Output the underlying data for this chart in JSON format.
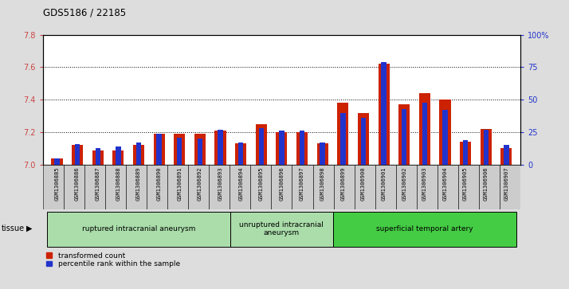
{
  "title": "GDS5186 / 22185",
  "samples": [
    "GSM1306885",
    "GSM1306886",
    "GSM1306887",
    "GSM1306888",
    "GSM1306889",
    "GSM1306890",
    "GSM1306891",
    "GSM1306892",
    "GSM1306893",
    "GSM1306894",
    "GSM1306895",
    "GSM1306896",
    "GSM1306897",
    "GSM1306898",
    "GSM1306899",
    "GSM1306900",
    "GSM1306901",
    "GSM1306902",
    "GSM1306903",
    "GSM1306904",
    "GSM1306905",
    "GSM1306906",
    "GSM1306907"
  ],
  "transformed_count": [
    7.04,
    7.12,
    7.09,
    7.09,
    7.12,
    7.19,
    7.19,
    7.19,
    7.21,
    7.13,
    7.25,
    7.2,
    7.2,
    7.13,
    7.38,
    7.32,
    7.62,
    7.37,
    7.44,
    7.4,
    7.14,
    7.22,
    7.1
  ],
  "percentile_rank": [
    5,
    16,
    13,
    14,
    17,
    24,
    21,
    20,
    27,
    17,
    28,
    26,
    26,
    17,
    40,
    36,
    79,
    43,
    48,
    42,
    19,
    27,
    15
  ],
  "ylim_left": [
    7.0,
    7.8
  ],
  "ylim_right": [
    0,
    100
  ],
  "yticks_left": [
    7.0,
    7.2,
    7.4,
    7.6,
    7.8
  ],
  "yticks_right": [
    0,
    25,
    50,
    75,
    100
  ],
  "bar_color_red": "#cc2200",
  "bar_color_blue": "#2233cc",
  "background_color": "#dddddd",
  "plot_bg_color": "#ffffff",
  "label_bg_color": "#cccccc",
  "legend_label_red": "transformed count",
  "legend_label_blue": "percentile rank within the sample",
  "groups": [
    {
      "label": "ruptured intracranial aneurysm",
      "start": 0,
      "end": 9,
      "color": "#aaddaa"
    },
    {
      "label": "unruptured intracranial\naneurysm",
      "start": 9,
      "end": 14,
      "color": "#aaddaa"
    },
    {
      "label": "superficial temporal artery",
      "start": 14,
      "end": 23,
      "color": "#44cc44"
    }
  ]
}
